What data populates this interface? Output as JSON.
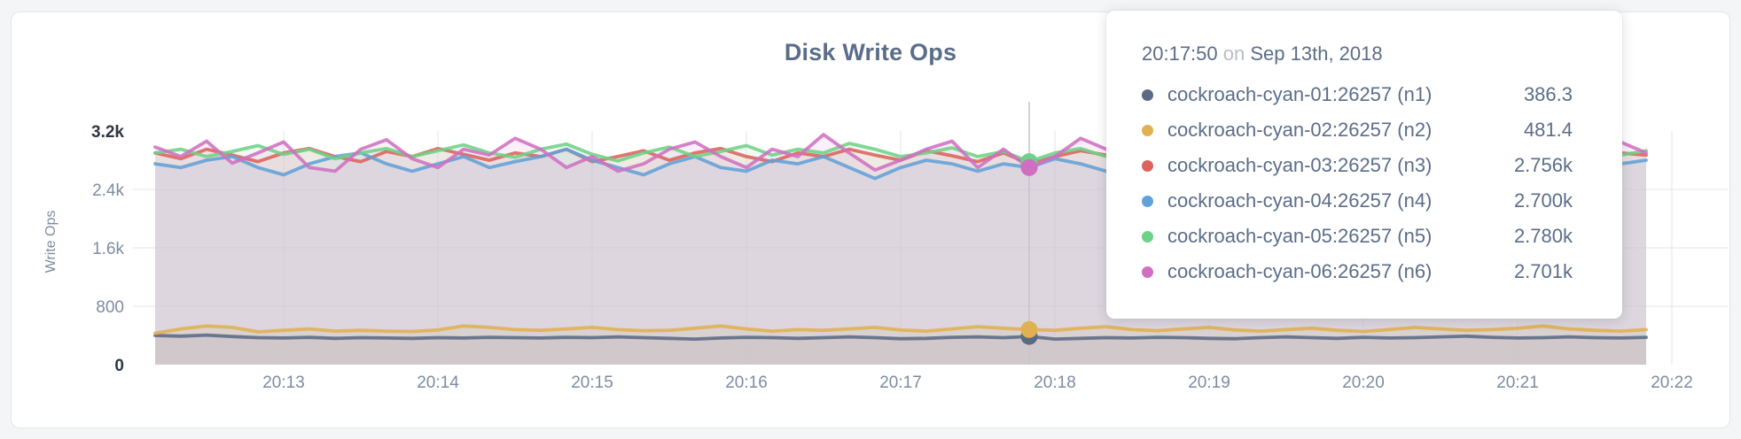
{
  "colors": {
    "page_bg": "#f4f5f6",
    "card_bg": "#ffffff",
    "card_border": "#e4e5e8",
    "title_text": "#5b6d89",
    "axis_text": "#7e8ca0",
    "axis_text_dark": "#2e3742",
    "tooltip_text": "#5b6d89",
    "tooltip_muted": "#b9bec5",
    "hover_line": "#c3c7cc",
    "grid_line": "#caccd0"
  },
  "tooltip": {
    "time": "20:17:50",
    "on_word": "on",
    "date": "Sep 13th, 2018"
  },
  "chart_data": {
    "type": "line",
    "title": "Disk Write Ops",
    "xlabel": "",
    "ylabel": "Write Ops",
    "ylim": [
      0,
      3200
    ],
    "grid": true,
    "x_start_time": "20:12:10",
    "x_interval_seconds": 10,
    "y_ticks": [
      {
        "label": "0",
        "value": 0,
        "emphasis": true
      },
      {
        "label": "800",
        "value": 800,
        "emphasis": false
      },
      {
        "label": "1.6k",
        "value": 1600,
        "emphasis": false
      },
      {
        "label": "2.4k",
        "value": 2400,
        "emphasis": false
      },
      {
        "label": "3.2k",
        "value": 3200,
        "emphasis": true
      }
    ],
    "x_ticks": [
      "20:13",
      "20:14",
      "20:15",
      "20:16",
      "20:17",
      "20:18",
      "20:19",
      "20:20",
      "20:21",
      "20:22"
    ],
    "hover": {
      "index": 34,
      "time": "20:17:50"
    },
    "series": [
      {
        "name": "cockroach-cyan-01:26257 (n1)",
        "color": "#5b6a84",
        "hover_value": "386.3",
        "values": [
          400,
          390,
          405,
          385,
          370,
          365,
          375,
          360,
          370,
          365,
          360,
          370,
          365,
          375,
          370,
          365,
          375,
          370,
          380,
          370,
          360,
          350,
          365,
          375,
          370,
          360,
          370,
          380,
          370,
          355,
          360,
          375,
          380,
          370,
          386.3,
          350,
          360,
          370,
          365,
          375,
          370,
          360,
          355,
          370,
          380,
          370,
          360,
          375,
          365,
          370,
          380,
          390,
          375,
          365,
          370,
          380,
          370,
          365,
          375
        ]
      },
      {
        "name": "cockroach-cyan-02:26257 (n2)",
        "color": "#e0b151",
        "hover_value": "481.4",
        "values": [
          430,
          490,
          530,
          510,
          450,
          470,
          490,
          460,
          470,
          460,
          455,
          475,
          530,
          510,
          480,
          470,
          490,
          510,
          480,
          465,
          470,
          500,
          530,
          490,
          460,
          480,
          470,
          490,
          510,
          475,
          460,
          490,
          520,
          500,
          481.4,
          470,
          500,
          520,
          480,
          465,
          490,
          510,
          475,
          460,
          480,
          500,
          470,
          455,
          480,
          510,
          490,
          470,
          480,
          500,
          530,
          490,
          470,
          460,
          480
        ]
      },
      {
        "name": "cockroach-cyan-03:26257 (n3)",
        "color": "#dd625c",
        "hover_value": "2.756k",
        "values": [
          2900,
          2820,
          2950,
          2870,
          2780,
          2900,
          2960,
          2850,
          2780,
          2920,
          2850,
          2960,
          2880,
          2800,
          2900,
          2850,
          2950,
          2780,
          2850,
          2930,
          2800,
          2900,
          2960,
          2850,
          2780,
          2900,
          2850,
          2950,
          2870,
          2800,
          2930,
          2860,
          2780,
          2900,
          2756,
          2850,
          2930,
          2870,
          2800,
          2900,
          2950,
          2850,
          2780,
          2900,
          2860,
          2950,
          2850,
          2800,
          2900,
          2870,
          2950,
          2850,
          2920,
          2800,
          2880,
          2930,
          2850,
          2900,
          2870
        ]
      },
      {
        "name": "cockroach-cyan-04:26257 (n4)",
        "color": "#62a1d8",
        "hover_value": "2.700k",
        "values": [
          2750,
          2700,
          2800,
          2850,
          2700,
          2600,
          2750,
          2850,
          2900,
          2750,
          2650,
          2750,
          2850,
          2700,
          2780,
          2850,
          2950,
          2800,
          2700,
          2600,
          2750,
          2850,
          2700,
          2650,
          2800,
          2750,
          2850,
          2700,
          2550,
          2700,
          2800,
          2750,
          2650,
          2750,
          2700,
          2820,
          2750,
          2650,
          2700,
          2800,
          2750,
          2850,
          2700,
          2600,
          2750,
          2800,
          2700,
          2750,
          2850,
          2700,
          2650,
          2750,
          2800,
          2700,
          2900,
          2800,
          2700,
          2750,
          2800
        ]
      },
      {
        "name": "cockroach-cyan-05:26257 (n5)",
        "color": "#6ed188",
        "hover_value": "2.780k",
        "values": [
          2900,
          2950,
          2850,
          2920,
          3000,
          2880,
          2950,
          2820,
          2900,
          2960,
          2850,
          2930,
          3010,
          2900,
          2840,
          2950,
          3020,
          2880,
          2790,
          2900,
          2980,
          2850,
          2920,
          3000,
          2870,
          2950,
          2900,
          3030,
          2950,
          2850,
          2900,
          2970,
          2850,
          2920,
          2780,
          2900,
          2960,
          2850,
          2930,
          3000,
          2880,
          2940,
          2850,
          2960,
          2900,
          2830,
          2950,
          3010,
          2880,
          2920,
          2850,
          2960,
          2900,
          2840,
          2950,
          2900,
          2960,
          2870,
          2930
        ]
      },
      {
        "name": "cockroach-cyan-06:26257 (n6)",
        "color": "#d06fc2",
        "hover_value": "2.701k",
        "values": [
          2980,
          2850,
          3060,
          2760,
          2900,
          3050,
          2700,
          2650,
          2950,
          3080,
          2820,
          2700,
          2950,
          2870,
          3100,
          2950,
          2700,
          2850,
          2650,
          2750,
          2950,
          3050,
          2850,
          2700,
          2950,
          2850,
          3150,
          2900,
          2666,
          2800,
          2950,
          3060,
          2700,
          2950,
          2701,
          2850,
          3100,
          2950,
          2800,
          2700,
          2900,
          3050,
          2750,
          2850,
          2950,
          2650,
          2800,
          3000,
          2850,
          2700,
          2950,
          2850,
          3050,
          2700,
          2800,
          2950,
          2850,
          3050,
          2900
        ]
      }
    ]
  }
}
